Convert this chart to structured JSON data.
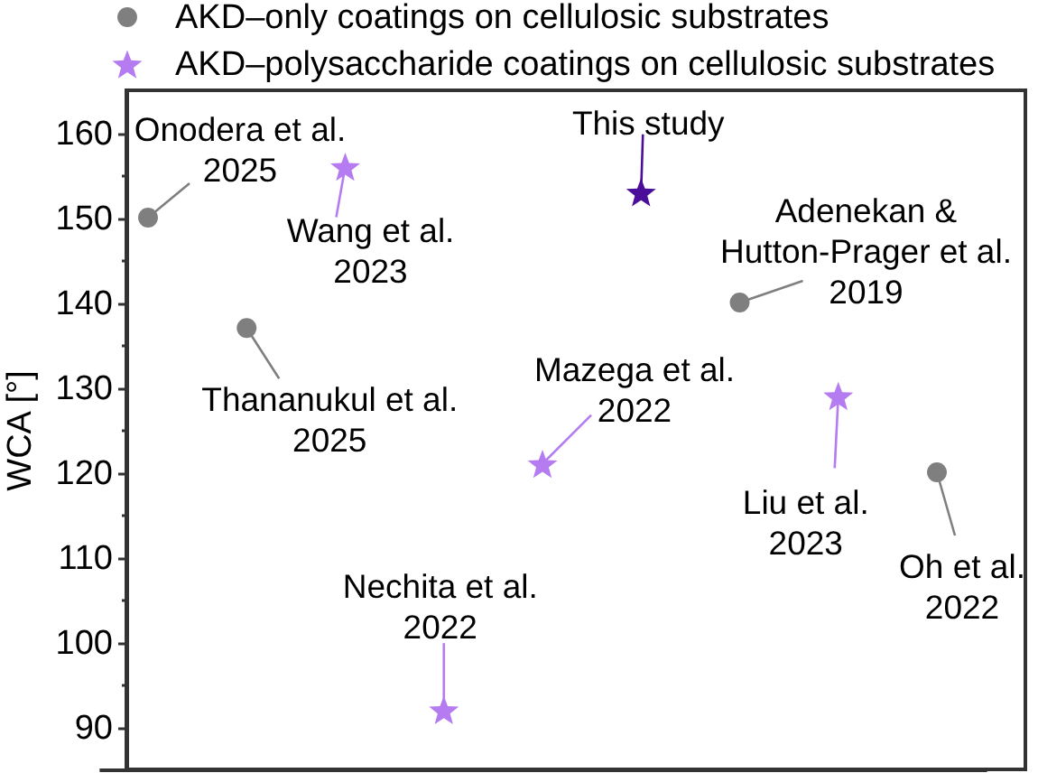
{
  "chart_data": {
    "type": "scatter",
    "ylabel": "WCA [°]",
    "categories": [
      null,
      null,
      null,
      null,
      null,
      null,
      null,
      null,
      null
    ],
    "ylim": [
      85,
      165
    ],
    "yticks": [
      90,
      {
        "value": 95,
        "label": null
      },
      100,
      {
        "value": 105,
        "label": null
      },
      110,
      {
        "value": 115,
        "label": null
      },
      120,
      {
        "value": 125,
        "label": null
      },
      130,
      {
        "value": 135,
        "label": null
      },
      140,
      {
        "value": 145,
        "label": null
      },
      150,
      {
        "value": 155,
        "label": null
      },
      160
    ],
    "legend": "top",
    "series": [
      {
        "name": "AKD–only coatings on cellulosic substrates",
        "color": "#7f7f7f",
        "marker": "circle",
        "values": [
          150,
          137,
          null,
          null,
          null,
          null,
          140,
          null,
          120
        ]
      },
      {
        "name": "AKD–polysaccharide coatings on cellulosic substrates",
        "color": "#b57bf0",
        "marker": "star",
        "values": [
          null,
          null,
          156,
          92,
          121,
          null,
          null,
          129,
          null
        ]
      },
      {
        "color": "#4b0e9a",
        "marker": "star",
        "values": [
          null,
          null,
          null,
          null,
          null,
          153,
          null,
          null,
          null
        ]
      }
    ],
    "annotations": [
      "Onodera et al.\n2025",
      "Thananukul  et al.\n2025",
      "Wang et al.\n2023",
      "Nechita et al.\n2022",
      "Mazega et al.\n2022",
      "This study",
      "Adenekan &\nHutton-Prager et al.\n2019",
      "Liu et al.\n2023",
      "Oh et al.\n2022"
    ]
  }
}
